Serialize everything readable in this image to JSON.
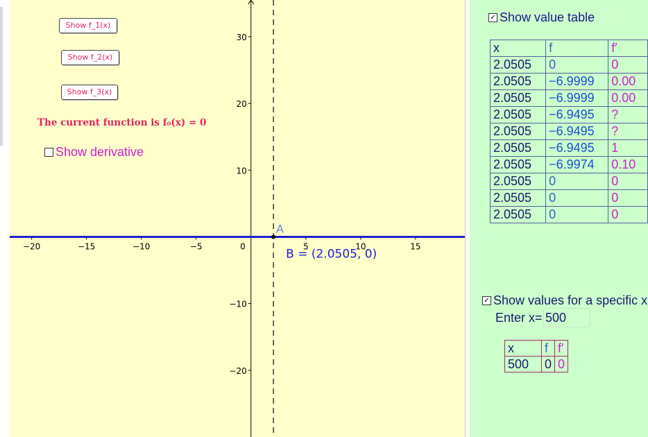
{
  "buttons": {
    "f1": "Show f_1(x)",
    "f2": "Show f_2(x)",
    "f3": "Show f_3(x)"
  },
  "current_function_text": "The current function is f₀(x) = 0",
  "show_derivative": {
    "label": "Show derivative",
    "checked": false
  },
  "axes": {
    "x_ticks": [
      "−20",
      "−15",
      "−10",
      "−5",
      "0",
      "5",
      "10",
      "15"
    ],
    "y_ticks": [
      "30",
      "20",
      "10",
      "−10",
      "−20"
    ],
    "x_range": [
      -22,
      19.5
    ],
    "y_range": [
      -30,
      35.5
    ]
  },
  "points": {
    "A": {
      "label": "A",
      "x": 2.05,
      "y": 0
    },
    "B": {
      "label": "B = (2.0505, 0)",
      "x": 2.0505,
      "y": 0
    }
  },
  "colors": {
    "graph_bg": "#ffffcc",
    "algebra_bg": "#ccffcc",
    "function_line": "#2020d0",
    "accent_pink": "#e0245e",
    "derivative": "#cc22cc"
  },
  "value_table": {
    "toggle_label": "Show value table",
    "checked": true,
    "headers": [
      "x",
      "f",
      "f′"
    ],
    "rows": [
      [
        "2.0505",
        "0",
        "0"
      ],
      [
        "2.0505",
        "−6.9999",
        "0.00"
      ],
      [
        "2.0505",
        "−6.9999",
        "0.00"
      ],
      [
        "2.0505",
        "−6.9495",
        "?"
      ],
      [
        "2.0505",
        "−6.9495",
        "?"
      ],
      [
        "2.0505",
        "−6.9495",
        "1"
      ],
      [
        "2.0505",
        "−6.9974",
        "0.10"
      ],
      [
        "2.0505",
        "0",
        "0"
      ],
      [
        "2.0505",
        "0",
        "0"
      ],
      [
        "2.0505",
        "0",
        "0"
      ]
    ]
  },
  "specific": {
    "toggle_label": "Show values for a specific x",
    "checked": true,
    "enter_label": "Enter x=",
    "input_value": "500",
    "headers": [
      "x",
      "f",
      "f′"
    ],
    "row": [
      "500",
      "0",
      "0"
    ]
  }
}
